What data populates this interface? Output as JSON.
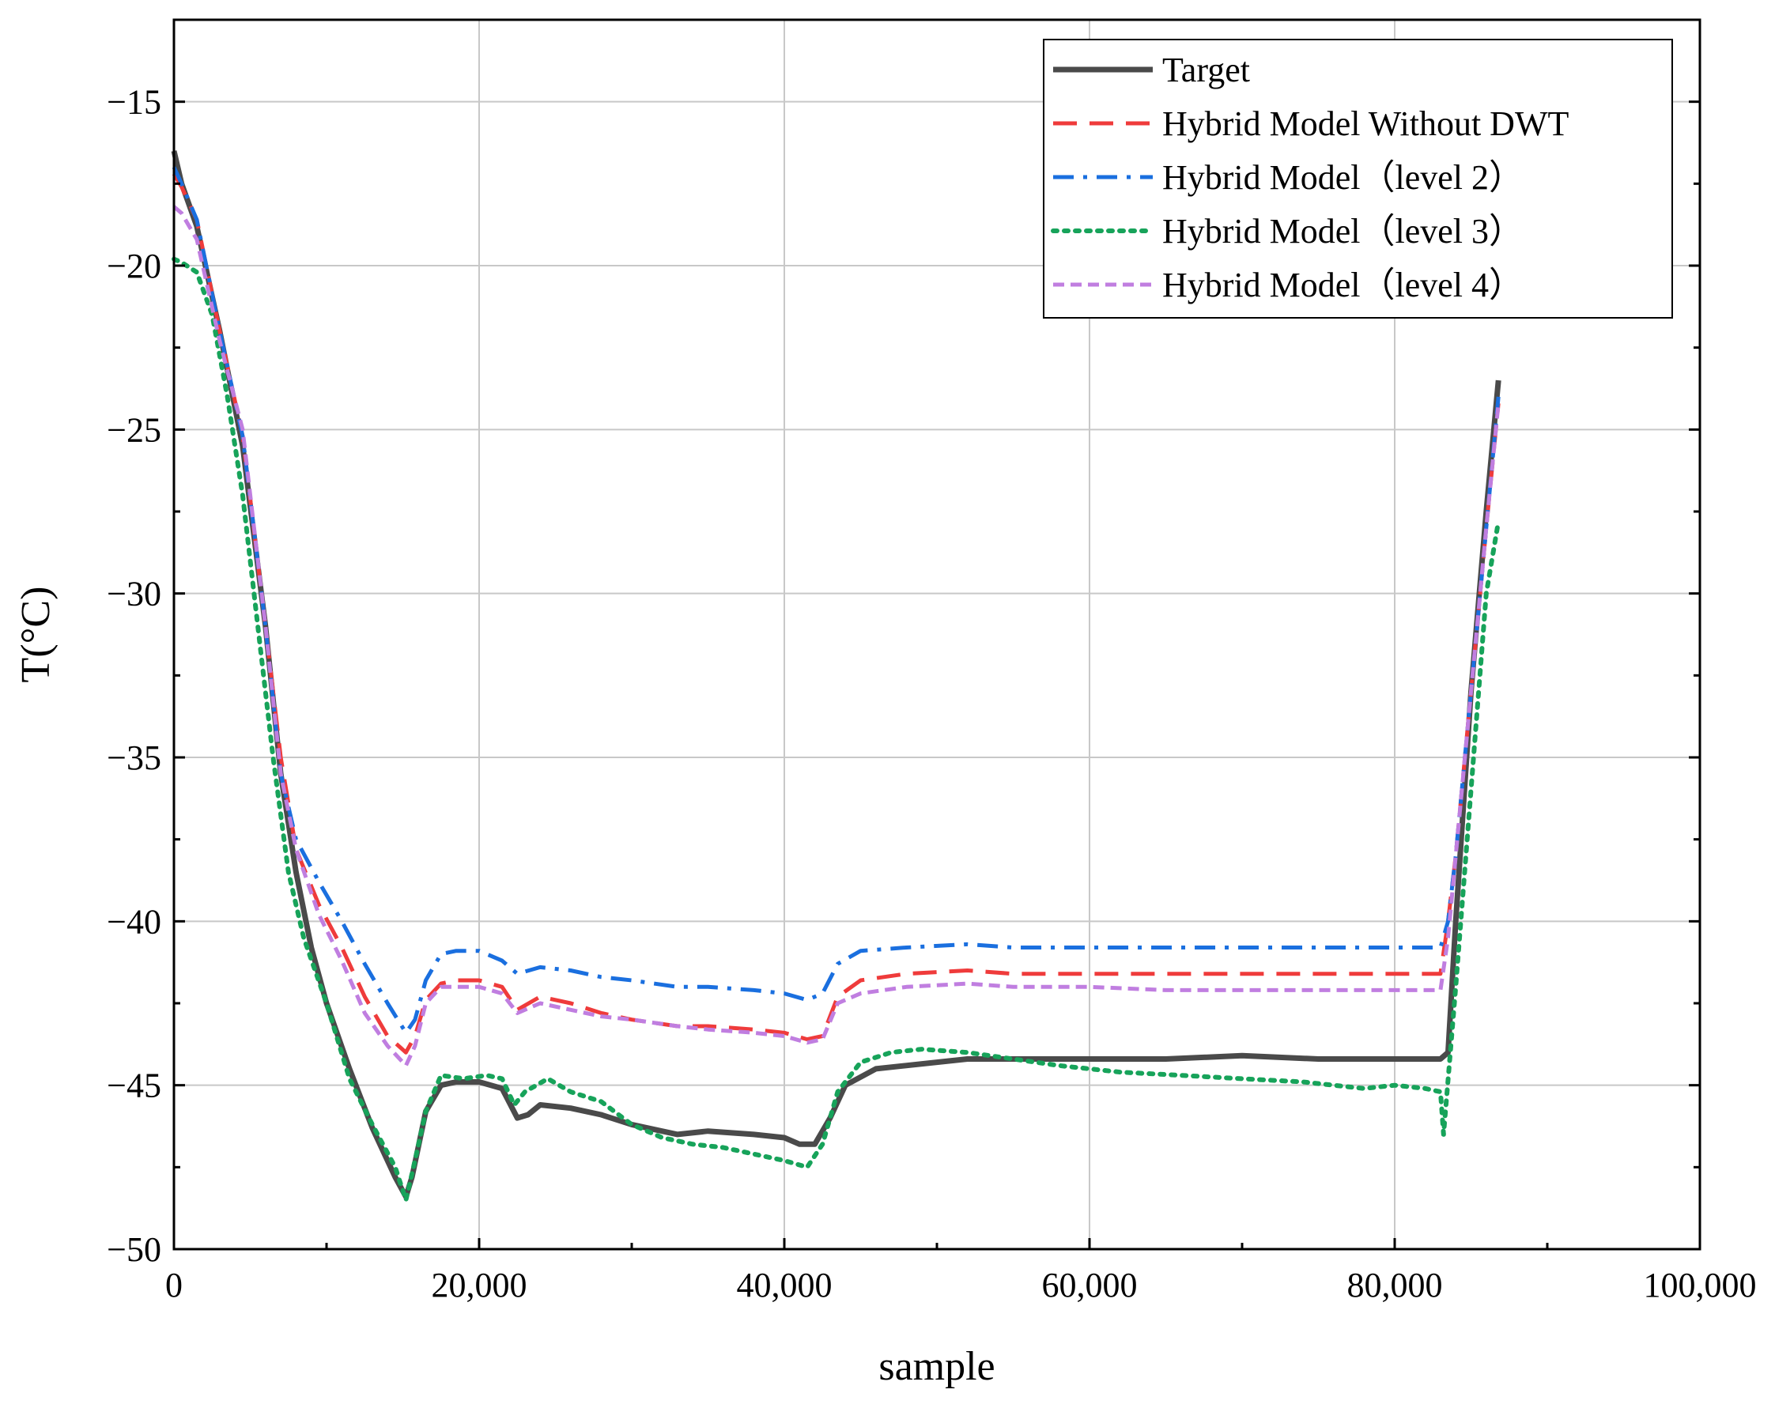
{
  "chart_data": {
    "type": "line",
    "title": "",
    "xlabel": "sample",
    "ylabel": "T(°C)",
    "xlim": [
      0,
      100000
    ],
    "ylim": [
      -50,
      -12.5
    ],
    "xticks": [
      0,
      20000,
      40000,
      60000,
      80000,
      100000
    ],
    "xtick_labels": [
      "0",
      "20,000",
      "40,000",
      "60,000",
      "80,000",
      "100,000"
    ],
    "yticks": [
      -50,
      -45,
      -40,
      -35,
      -30,
      -25,
      -20,
      -15
    ],
    "ytick_labels": [
      "−50",
      "−45",
      "−40",
      "−35",
      "−30",
      "−25",
      "−20",
      "−15"
    ],
    "grid": true,
    "legend_position": "top-right",
    "series": [
      {
        "name": "Target",
        "color": "#4a4a4a",
        "style": "solid",
        "x": [
          0,
          500,
          1500,
          3000,
          4500,
          6000,
          7000,
          8000,
          9000,
          10000,
          11500,
          13000,
          14500,
          15200,
          15600,
          16500,
          17500,
          18500,
          20000,
          21500,
          22500,
          23200,
          24000,
          26000,
          28000,
          30000,
          33000,
          35000,
          38000,
          40000,
          41000,
          42000,
          43000,
          44000,
          46000,
          50000,
          52000,
          55000,
          60000,
          65000,
          70000,
          75000,
          80000,
          83000,
          83500,
          84000,
          85000,
          86000,
          86800
        ],
        "y": [
          -16.5,
          -17.5,
          -18.8,
          -22,
          -25.5,
          -31,
          -35.5,
          -38.5,
          -40.8,
          -42.5,
          -44.5,
          -46.3,
          -47.8,
          -48.4,
          -47.8,
          -45.8,
          -45.0,
          -44.9,
          -44.9,
          -45.1,
          -46.0,
          -45.9,
          -45.6,
          -45.7,
          -45.9,
          -46.2,
          -46.5,
          -46.4,
          -46.5,
          -46.6,
          -46.8,
          -46.8,
          -46.0,
          -45.0,
          -44.5,
          -44.3,
          -44.2,
          -44.2,
          -44.2,
          -44.2,
          -44.1,
          -44.2,
          -44.2,
          -44.2,
          -44.0,
          -40.0,
          -33.0,
          -27.5,
          -23.5
        ]
      },
      {
        "name": "Hybrid Model Without DWT",
        "color": "#ef3b3b",
        "style": "dashed",
        "x": [
          0,
          500,
          1500,
          3000,
          4500,
          6000,
          7000,
          8000,
          9500,
          11000,
          12500,
          14000,
          15200,
          15800,
          16500,
          17500,
          18500,
          20000,
          21500,
          22500,
          24000,
          26000,
          28000,
          30000,
          33000,
          35000,
          38000,
          40000,
          41500,
          42500,
          43500,
          45000,
          48000,
          52000,
          55000,
          60000,
          65000,
          70000,
          75000,
          80000,
          83000,
          83500,
          84000,
          85000,
          86000,
          86800
        ],
        "y": [
          -17.2,
          -17.6,
          -18.6,
          -22,
          -25.2,
          -31,
          -35.0,
          -37.8,
          -39.5,
          -40.8,
          -42.3,
          -43.5,
          -44.0,
          -43.5,
          -42.4,
          -41.9,
          -41.8,
          -41.8,
          -42.0,
          -42.7,
          -42.3,
          -42.5,
          -42.8,
          -43.0,
          -43.2,
          -43.2,
          -43.3,
          -43.4,
          -43.6,
          -43.5,
          -42.3,
          -41.8,
          -41.6,
          -41.5,
          -41.6,
          -41.6,
          -41.6,
          -41.6,
          -41.6,
          -41.6,
          -41.6,
          -40.0,
          -38.0,
          -33.0,
          -28.0,
          -24.2
        ]
      },
      {
        "name": "Hybrid Model（level 2）",
        "color": "#1a6fdf",
        "style": "dashdot",
        "x": [
          0,
          500,
          1500,
          3000,
          4500,
          6000,
          7000,
          8000,
          9500,
          11000,
          12500,
          14000,
          15200,
          15800,
          16500,
          17500,
          18500,
          20000,
          21500,
          22500,
          24000,
          26000,
          28000,
          30000,
          33000,
          35000,
          38000,
          40000,
          41500,
          42500,
          43500,
          45000,
          48000,
          52000,
          55000,
          60000,
          65000,
          70000,
          75000,
          80000,
          83000,
          83500,
          84000,
          85000,
          86000,
          86800
        ],
        "y": [
          -17.0,
          -17.5,
          -18.6,
          -22,
          -25.2,
          -31,
          -35.5,
          -37.5,
          -38.8,
          -40.0,
          -41.3,
          -42.5,
          -43.4,
          -43.0,
          -41.8,
          -41.0,
          -40.9,
          -40.9,
          -41.2,
          -41.6,
          -41.4,
          -41.5,
          -41.7,
          -41.8,
          -42.0,
          -42.0,
          -42.1,
          -42.2,
          -42.4,
          -42.2,
          -41.3,
          -40.9,
          -40.8,
          -40.7,
          -40.8,
          -40.8,
          -40.8,
          -40.8,
          -40.8,
          -40.8,
          -40.8,
          -40.0,
          -38.0,
          -33.0,
          -28.0,
          -24.0
        ]
      },
      {
        "name": "Hybrid Model（level 3）",
        "color": "#17a35a",
        "style": "dotted",
        "x": [
          0,
          500,
          1500,
          2500,
          3500,
          4500,
          5500,
          6500,
          7500,
          8500,
          10000,
          11500,
          13000,
          14500,
          15200,
          15700,
          16500,
          17500,
          19000,
          20500,
          21500,
          22300,
          23000,
          24500,
          26000,
          28000,
          30000,
          32000,
          34000,
          36000,
          38000,
          40000,
          41500,
          42500,
          43500,
          45000,
          47000,
          49000,
          52000,
          55000,
          58000,
          62000,
          66000,
          70000,
          74000,
          76000,
          78000,
          80000,
          82000,
          83000,
          83200,
          84000,
          85000,
          86000,
          86800
        ],
        "y": [
          -19.8,
          -19.9,
          -20.2,
          -21.5,
          -24.0,
          -27.0,
          -31.0,
          -35.0,
          -38.5,
          -40.5,
          -42.5,
          -44.8,
          -46.2,
          -47.5,
          -48.5,
          -47.5,
          -45.8,
          -44.7,
          -44.8,
          -44.7,
          -44.8,
          -45.6,
          -45.2,
          -44.8,
          -45.2,
          -45.5,
          -46.2,
          -46.6,
          -46.8,
          -46.9,
          -47.1,
          -47.3,
          -47.5,
          -46.8,
          -45.2,
          -44.3,
          -44.0,
          -43.9,
          -44.0,
          -44.2,
          -44.4,
          -44.6,
          -44.7,
          -44.8,
          -44.9,
          -45.0,
          -45.1,
          -45.0,
          -45.1,
          -45.2,
          -46.5,
          -42.0,
          -36.0,
          -30.0,
          -27.8
        ]
      },
      {
        "name": "Hybrid Model（level 4）",
        "color": "#c07ee0",
        "style": "shortdash",
        "x": [
          0,
          500,
          1500,
          3000,
          4500,
          6000,
          7000,
          8000,
          9500,
          11000,
          12500,
          14000,
          15200,
          15800,
          16500,
          17500,
          18500,
          20000,
          21500,
          22500,
          24000,
          26000,
          28000,
          30000,
          33000,
          35000,
          38000,
          40000,
          41500,
          42500,
          43500,
          45000,
          48000,
          52000,
          55000,
          60000,
          65000,
          70000,
          75000,
          80000,
          83000,
          83500,
          84000,
          85000,
          86000,
          86800
        ],
        "y": [
          -18.2,
          -18.4,
          -19.2,
          -22.3,
          -25.0,
          -31,
          -35.5,
          -37.8,
          -39.8,
          -41.2,
          -42.8,
          -43.8,
          -44.4,
          -43.8,
          -42.5,
          -42.0,
          -42.0,
          -42.0,
          -42.2,
          -42.8,
          -42.5,
          -42.7,
          -42.9,
          -43.0,
          -43.2,
          -43.3,
          -43.4,
          -43.5,
          -43.7,
          -43.6,
          -42.5,
          -42.2,
          -42.0,
          -41.9,
          -42.0,
          -42.0,
          -42.1,
          -42.1,
          -42.1,
          -42.1,
          -42.1,
          -40.5,
          -38.0,
          -33.0,
          -28.0,
          -24.2
        ]
      }
    ]
  }
}
